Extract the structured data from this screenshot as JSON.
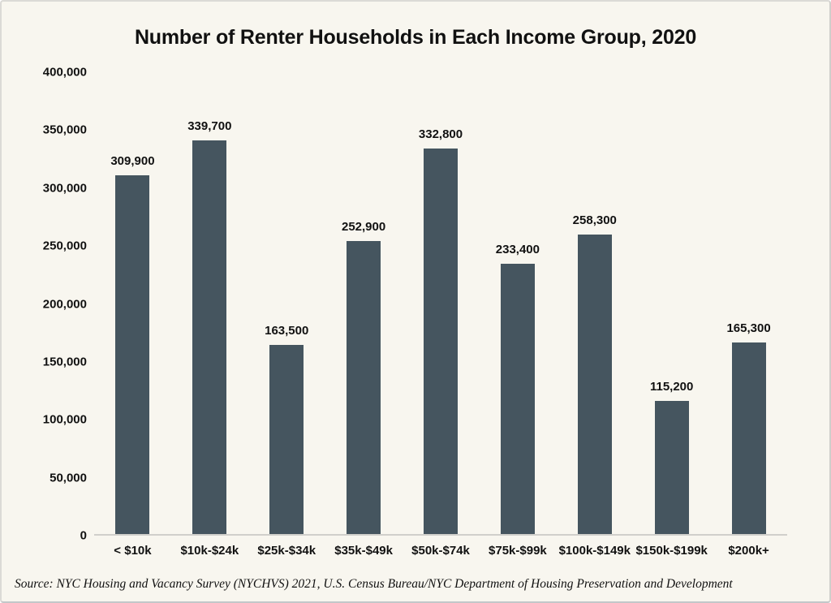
{
  "title": "Number of Renter Households in Each Income Group, 2020",
  "source": "Source: NYC Housing and Vacancy Survey (NYCHVS) 2021, U.S. Census Bureau/NYC Department of Housing Preservation and Development",
  "colors": {
    "background": "#F8F6EF",
    "bar": "#45555F",
    "text": "#111111",
    "axis_line": "#D0CFCB",
    "frame_border": "#D9D8D4"
  },
  "chart_data": {
    "type": "bar",
    "title": "Number of Renter Households in Each Income Group, 2020",
    "categories": [
      "< $10k",
      "$10k-$24k",
      "$25k-$34k",
      "$35k-$49k",
      "$50k-$74k",
      "$75k-$99k",
      "$100k-$149k",
      "$150k-$199k",
      "$200k+"
    ],
    "values": [
      309900,
      339700,
      163500,
      252900,
      332800,
      233400,
      258300,
      115200,
      165300
    ],
    "value_labels": [
      "309,900",
      "339,700",
      "163,500",
      "252,900",
      "332,800",
      "233,400",
      "258,300",
      "115,200",
      "165,300"
    ],
    "y_ticks": [
      {
        "value": 400000,
        "label": "400,000"
      },
      {
        "value": 350000,
        "label": "350,000"
      },
      {
        "value": 300000,
        "label": "300,000"
      },
      {
        "value": 250000,
        "label": "250,000"
      },
      {
        "value": 200000,
        "label": "200,000"
      },
      {
        "value": 150000,
        "label": "150,000"
      },
      {
        "value": 100000,
        "label": "100,000"
      },
      {
        "value": 50000,
        "label": "50,000"
      },
      {
        "value": 0,
        "label": "0"
      }
    ],
    "ylim": [
      0,
      400000
    ],
    "xlabel": "",
    "ylabel": "",
    "grid": false,
    "legend": false
  }
}
